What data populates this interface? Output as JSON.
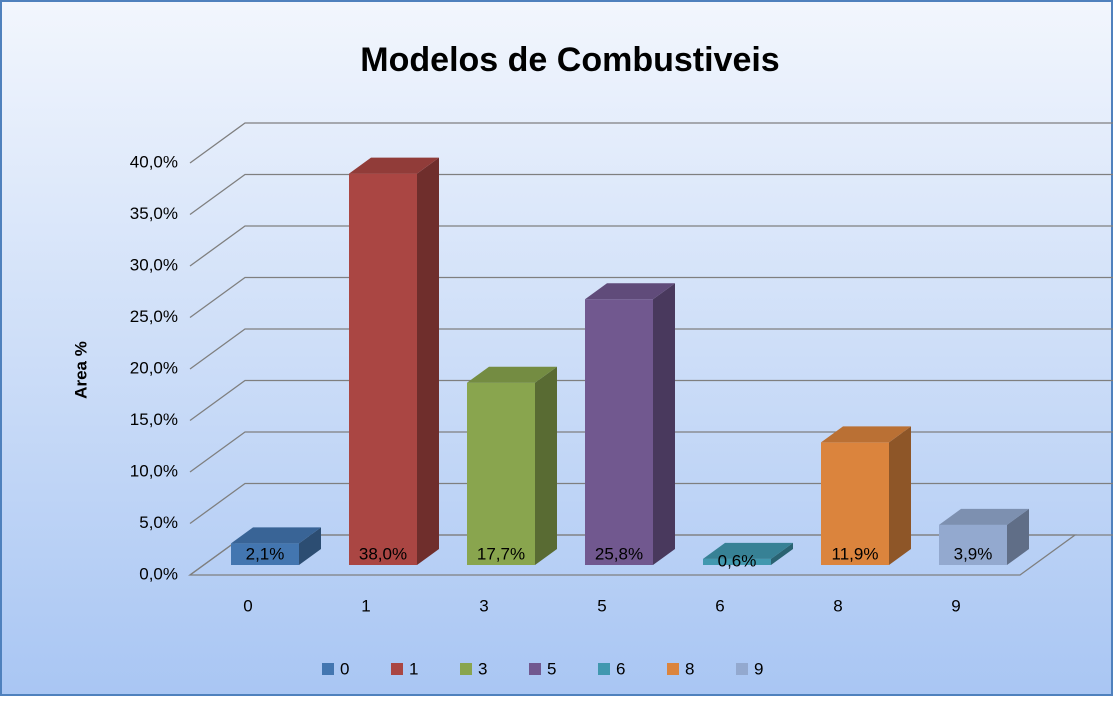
{
  "chart_data": {
    "type": "bar3d",
    "title": "Modelos de Combustiveis",
    "y_label": "Area %",
    "categories": [
      "0",
      "1",
      "3",
      "5",
      "6",
      "8",
      "9"
    ],
    "values": [
      2.1,
      38.0,
      17.7,
      25.8,
      0.6,
      11.9,
      3.9
    ],
    "value_labels": [
      "2,1%",
      "38,0%",
      "17,7%",
      "25,8%",
      "0,6%",
      "11,9%",
      "3,9%"
    ],
    "colors": [
      "#4376b0",
      "#aa4643",
      "#89a54e",
      "#71588f",
      "#4198af",
      "#db843d",
      "#93a9cf"
    ],
    "ylim": [
      0,
      40
    ],
    "yticks": [
      {
        "value": 0,
        "label": "0,0%"
      },
      {
        "value": 5,
        "label": "5,0%"
      },
      {
        "value": 10,
        "label": "10,0%"
      },
      {
        "value": 15,
        "label": "15,0%"
      },
      {
        "value": 20,
        "label": "20,0%"
      },
      {
        "value": 25,
        "label": "25,0%"
      },
      {
        "value": 30,
        "label": "30,0%"
      },
      {
        "value": 35,
        "label": "35,0%"
      },
      {
        "value": 40,
        "label": "40,0%"
      }
    ],
    "grid": true,
    "legend": "bottom"
  }
}
